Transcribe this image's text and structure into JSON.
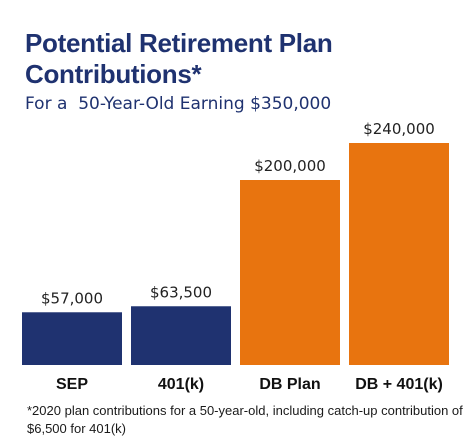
{
  "chart_data": {
    "type": "bar",
    "title": "Potential Retirement Plan Contributions*",
    "subtitle": "For a  50-Year-Old Earning $350,000",
    "categories": [
      "SEP",
      "401(k)",
      "DB Plan",
      "DB + 401(k)"
    ],
    "values": [
      57000,
      63500,
      200000,
      240000
    ],
    "value_labels": [
      "$57,000",
      "$63,500",
      "$200,000",
      "$240,000"
    ],
    "colors": [
      "#1f3270",
      "#1f3270",
      "#e8740f",
      "#e8740f"
    ],
    "ylim": [
      0,
      240000
    ],
    "xlabel": "",
    "ylabel": "",
    "grid": false,
    "legend": "none",
    "footnote": "*2020 plan contributions for a 50-year-old, including catch-up contribution of $6,500 for 401(k)"
  }
}
